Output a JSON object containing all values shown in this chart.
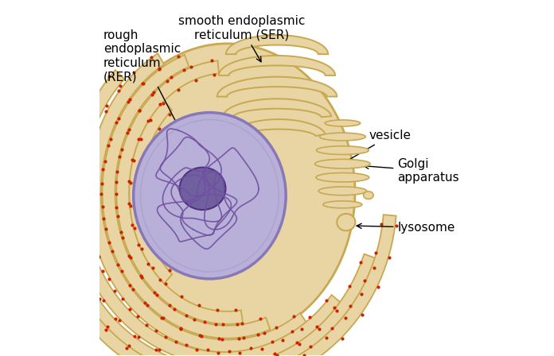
{
  "bg_color": "#ffffff",
  "cell_membrane_color": "#e8d5a3",
  "cell_membrane_edge": "#c8a850",
  "nucleus_fill": "#b8b0d8",
  "nucleus_edge": "#8878b8",
  "nucleolus_fill": "#7060a0",
  "nucleolus_edge": "#503080",
  "chromatin_color": "#7050a0",
  "ribosome_color": "#cc2200",
  "golgi_fill": "#e8d5a3",
  "golgi_edge": "#c8a850",
  "label_fontsize": 11,
  "labels": {
    "rer": "rough\nendoplasmic\nreticulum\n(RER)",
    "ser": "smooth endoplasmic\nreticulum (SER)",
    "vesicle": "vesicle",
    "golgi": "Golgi\napparatus",
    "lysosome": "lysosome"
  }
}
